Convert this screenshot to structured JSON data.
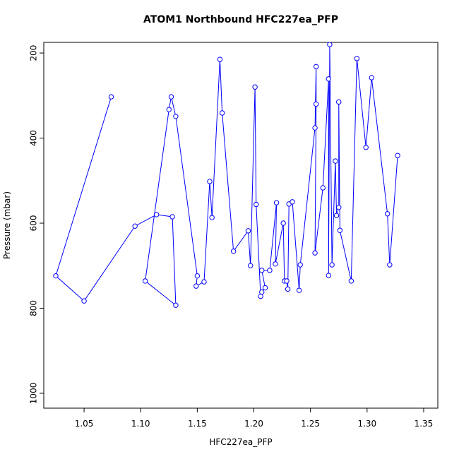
{
  "chart_data": {
    "type": "line",
    "title": "ATOM1 Northbound HFC227ea_PFP",
    "x_label": "HFC227ea_PFP",
    "y_label": "Pressure (mbar)",
    "x": [
      1.074,
      1.025,
      1.05,
      1.095,
      1.114,
      1.128,
      1.131,
      1.104,
      1.125,
      1.127,
      1.131,
      1.15,
      1.149,
      1.156,
      1.161,
      1.163,
      1.17,
      1.172,
      1.182,
      1.195,
      1.197,
      1.201,
      1.202,
      1.206,
      1.207,
      1.21,
      1.207,
      1.214,
      1.22,
      1.219,
      1.226,
      1.227,
      1.229,
      1.23,
      1.231,
      1.234,
      1.24,
      1.241,
      1.254,
      1.255,
      1.255,
      1.254,
      1.261,
      1.266,
      1.266,
      1.267,
      1.269,
      1.272,
      1.273,
      1.275,
      1.275,
      1.276,
      1.286,
      1.291,
      1.299,
      1.304,
      1.318,
      1.32,
      1.327
    ],
    "series": [
      {
        "name": "HFC227ea_PFP",
        "color": "#0000ff",
        "values": [
          303,
          724,
          783,
          607,
          580,
          585,
          793,
          736,
          333,
          303,
          349,
          724,
          748,
          738,
          502,
          587,
          215,
          341,
          666,
          618,
          700,
          280,
          556,
          772,
          762,
          752,
          711,
          711,
          552,
          696,
          600,
          736,
          736,
          755,
          555,
          550,
          758,
          698,
          376,
          232,
          320,
          670,
          517,
          261,
          723,
          180,
          698,
          454,
          582,
          563,
          315,
          617,
          736,
          213,
          422,
          258,
          578,
          698,
          441
        ]
      }
    ],
    "xlim": [
      1.0144,
      1.3625
    ],
    "ylim": [
      1035,
      175
    ],
    "xticks": [
      1.05,
      {
        "value": 1.1,
        "label": "1.10"
      },
      1.15,
      {
        "value": 1.2,
        "label": "1.20"
      },
      1.25,
      {
        "value": 1.3,
        "label": "1.30"
      },
      1.35
    ],
    "yticks": [
      200,
      400,
      600,
      800,
      1000
    ]
  }
}
